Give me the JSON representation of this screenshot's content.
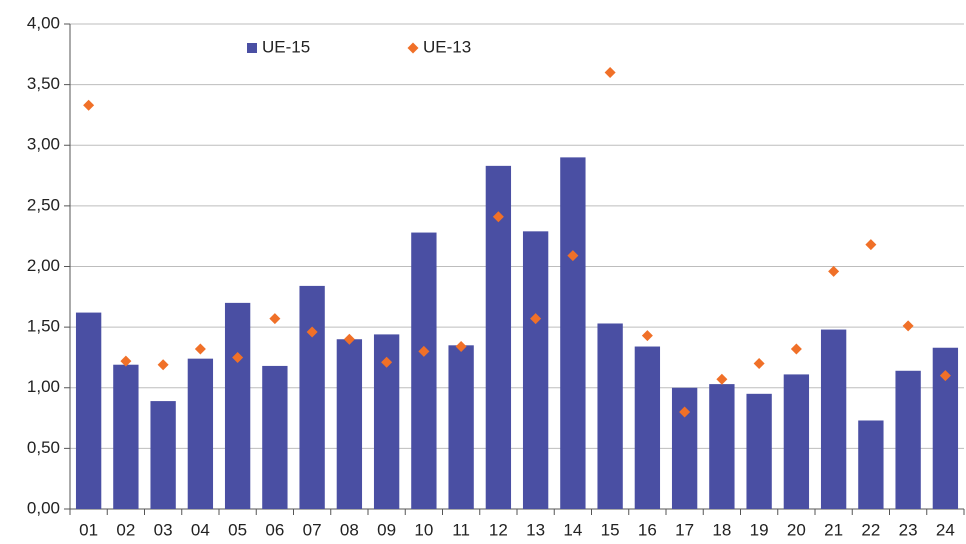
{
  "chart_data": {
    "type": "bar",
    "categories": [
      "01",
      "02",
      "03",
      "04",
      "05",
      "06",
      "07",
      "08",
      "09",
      "10",
      "11",
      "12",
      "13",
      "14",
      "15",
      "16",
      "17",
      "18",
      "19",
      "20",
      "21",
      "22",
      "23",
      "24"
    ],
    "series": [
      {
        "name": "UE-15",
        "type": "bar",
        "color": "#4a4fa3",
        "values": [
          1.62,
          1.19,
          0.89,
          1.24,
          1.7,
          1.18,
          1.84,
          1.4,
          1.44,
          2.28,
          1.35,
          2.83,
          2.29,
          2.9,
          1.53,
          1.34,
          1.0,
          1.03,
          0.95,
          1.11,
          1.48,
          0.73,
          1.14,
          1.33
        ]
      },
      {
        "name": "UE-13",
        "type": "scatter",
        "color": "#f07028",
        "values": [
          3.33,
          1.22,
          1.19,
          1.32,
          1.25,
          1.57,
          1.46,
          1.4,
          1.21,
          1.3,
          1.34,
          2.41,
          1.57,
          2.09,
          3.6,
          1.43,
          0.8,
          1.07,
          1.2,
          1.32,
          1.96,
          2.18,
          1.51,
          1.1
        ]
      }
    ],
    "ylim": [
      0,
      4
    ],
    "yticks": [
      {
        "value": 0,
        "label": "0,00"
      },
      {
        "value": 0.5,
        "label": "0,50"
      },
      {
        "value": 1,
        "label": "1,00"
      },
      {
        "value": 1.5,
        "label": "1,50"
      },
      {
        "value": 2,
        "label": "2,00"
      },
      {
        "value": 2.5,
        "label": "2,50"
      },
      {
        "value": 3,
        "label": "3,00"
      },
      {
        "value": 3.5,
        "label": "3,50"
      },
      {
        "value": 4,
        "label": "4,00"
      }
    ],
    "grid": true,
    "legend": "top"
  }
}
